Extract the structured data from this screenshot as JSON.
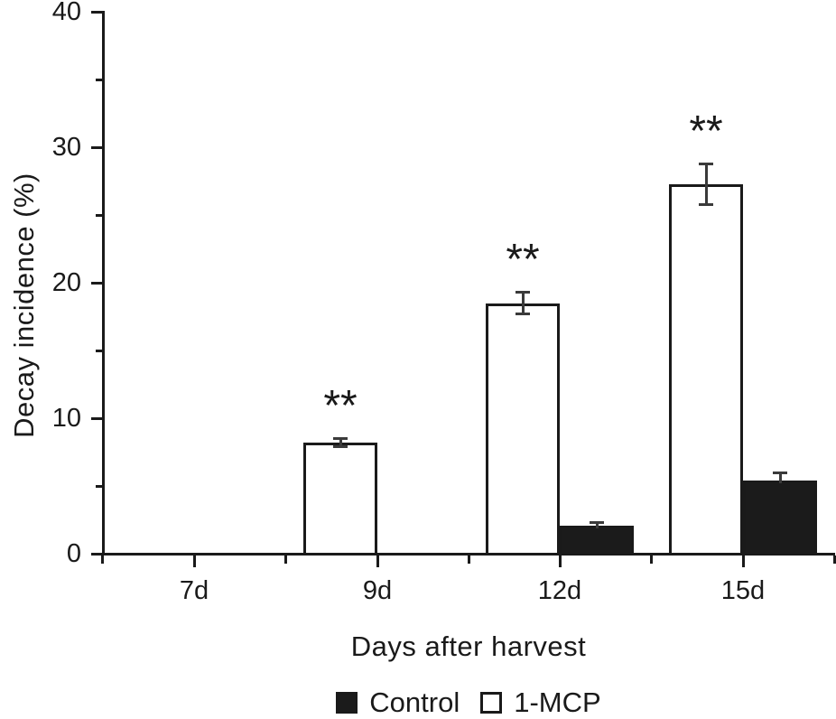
{
  "chart_data": {
    "type": "bar",
    "title": "",
    "categories": [
      "7d",
      "9d",
      "12d",
      "15d"
    ],
    "series": [
      {
        "name": "1-MCP",
        "style": "open",
        "values": [
          0,
          8.2,
          18.5,
          27.3
        ],
        "errors": [
          0,
          0.4,
          0.9,
          1.6
        ],
        "significance": [
          "",
          "**",
          "**",
          "**"
        ]
      },
      {
        "name": "Control",
        "style": "filled",
        "values": [
          0,
          0,
          2.1,
          5.4
        ],
        "errors": [
          0,
          0,
          0.3,
          0.7
        ],
        "significance": [
          "",
          "",
          "",
          ""
        ]
      }
    ],
    "xlabel": "Days after harvest",
    "ylabel": "Decay incidence (%)",
    "ylim": [
      0,
      40
    ],
    "y_major_step": 10,
    "y_minor_step": 5,
    "grid": false,
    "legend_position": "bottom",
    "error_bars": true,
    "layout_note": "white 1-MCP bar sits left of each group tick, black Control bar right"
  },
  "legend": {
    "items": [
      {
        "label": "Control",
        "swatch": "filled-black-square"
      },
      {
        "label": "1-MCP",
        "swatch": "open-white-square"
      }
    ]
  },
  "colors": {
    "foreground": "#1a1a1a",
    "bar_fill_control": "#1b1b1b",
    "bar_fill_mcp": "#ffffff",
    "error_bar": "#3a3a3a",
    "background": "#ffffff"
  }
}
